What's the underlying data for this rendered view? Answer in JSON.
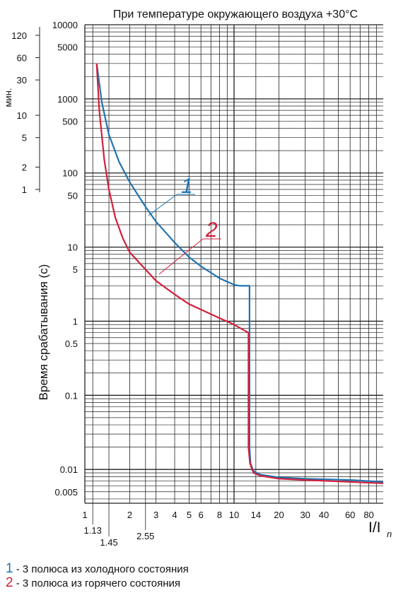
{
  "chart_data": {
    "type": "line",
    "title": "При температуре окружающего воздуха +30°С",
    "ylabel": "Время срабатывания (с)",
    "xlabel": "I/I",
    "xlabel_sub": "n",
    "x_scale": "log",
    "y_scale": "log",
    "xlim": [
      1,
      100
    ],
    "ylim": [
      0.0035,
      10000
    ],
    "grid": true,
    "x_ticks": [
      {
        "value": 1,
        "label": "1"
      },
      {
        "value": 2,
        "label": "2"
      },
      {
        "value": 3,
        "label": "3"
      },
      {
        "value": 4,
        "label": "4"
      },
      {
        "value": 5,
        "label": "5"
      },
      {
        "value": 6,
        "label": "6"
      },
      {
        "value": 8,
        "label": "8"
      },
      {
        "value": 10,
        "label": "10"
      },
      {
        "value": 14,
        "label": "14"
      },
      {
        "value": 20,
        "label": "20"
      },
      {
        "value": 30,
        "label": "30"
      },
      {
        "value": 40,
        "label": "40"
      },
      {
        "value": 60,
        "label": "60"
      },
      {
        "value": 80,
        "label": "80"
      }
    ],
    "x_ticks_extra": [
      {
        "value": 1.13,
        "label": "1.13"
      },
      {
        "value": 1.45,
        "label": "1.45"
      },
      {
        "value": 2.55,
        "label": "2.55"
      }
    ],
    "y_ticks": [
      {
        "value": 10000,
        "label": "10000"
      },
      {
        "value": 5000,
        "label": "5000"
      },
      {
        "value": 1000,
        "label": "1000"
      },
      {
        "value": 500,
        "label": "500"
      },
      {
        "value": 100,
        "label": "100"
      },
      {
        "value": 50,
        "label": "50"
      },
      {
        "value": 10,
        "label": "10"
      },
      {
        "value": 5,
        "label": "5"
      },
      {
        "value": 1,
        "label": "1"
      },
      {
        "value": 0.5,
        "label": "0.5"
      },
      {
        "value": 0.1,
        "label": "0.1"
      },
      {
        "value": 0.01,
        "label": "0.01"
      },
      {
        "value": 0.005,
        "label": "0.005"
      }
    ],
    "min_axis": {
      "label": "мин.",
      "ticks": [
        {
          "value": 120,
          "label": "120"
        },
        {
          "value": 60,
          "label": "60"
        },
        {
          "value": 30,
          "label": "30"
        },
        {
          "value": 10,
          "label": "10"
        },
        {
          "value": 5,
          "label": "5"
        },
        {
          "value": 2,
          "label": "2"
        },
        {
          "value": 1,
          "label": "1"
        }
      ]
    },
    "series": [
      {
        "name": "1",
        "color": "#1f74b0",
        "x": [
          1.2,
          1.3,
          1.45,
          1.7,
          2.0,
          2.55,
          3.0,
          4.0,
          5.0,
          6.0,
          8.0,
          10.0,
          11.0,
          12.7,
          12.7,
          12.9,
          13.5,
          15,
          20,
          30,
          60,
          100
        ],
        "y": [
          3000,
          900,
          330,
          140,
          75,
          35,
          22,
          11.5,
          7.3,
          5.5,
          3.8,
          3.1,
          3.0,
          3.0,
          0.02,
          0.012,
          0.0095,
          0.0085,
          0.0078,
          0.0075,
          0.0072,
          0.0068
        ]
      },
      {
        "name": "2",
        "color": "#d11f3c",
        "x": [
          1.2,
          1.25,
          1.35,
          1.45,
          1.6,
          1.8,
          2.0,
          2.55,
          3.0,
          4.0,
          5.0,
          8.0,
          10.0,
          12.5,
          12.5,
          12.8,
          13.5,
          15,
          20,
          30,
          60,
          100
        ],
        "y": [
          3000,
          700,
          150,
          60,
          25,
          13,
          8.5,
          5,
          3.5,
          2.3,
          1.7,
          1.1,
          0.9,
          0.7,
          0.02,
          0.012,
          0.009,
          0.0082,
          0.0075,
          0.0072,
          0.0068,
          0.0065
        ]
      }
    ]
  },
  "legend": [
    {
      "num": "1",
      "text": " - 3 полюса из холодного состояния",
      "color": "#1f74b0"
    },
    {
      "num": "2",
      "text": " - 3 полюса из горячего состояния",
      "color": "#d11f3c"
    }
  ]
}
